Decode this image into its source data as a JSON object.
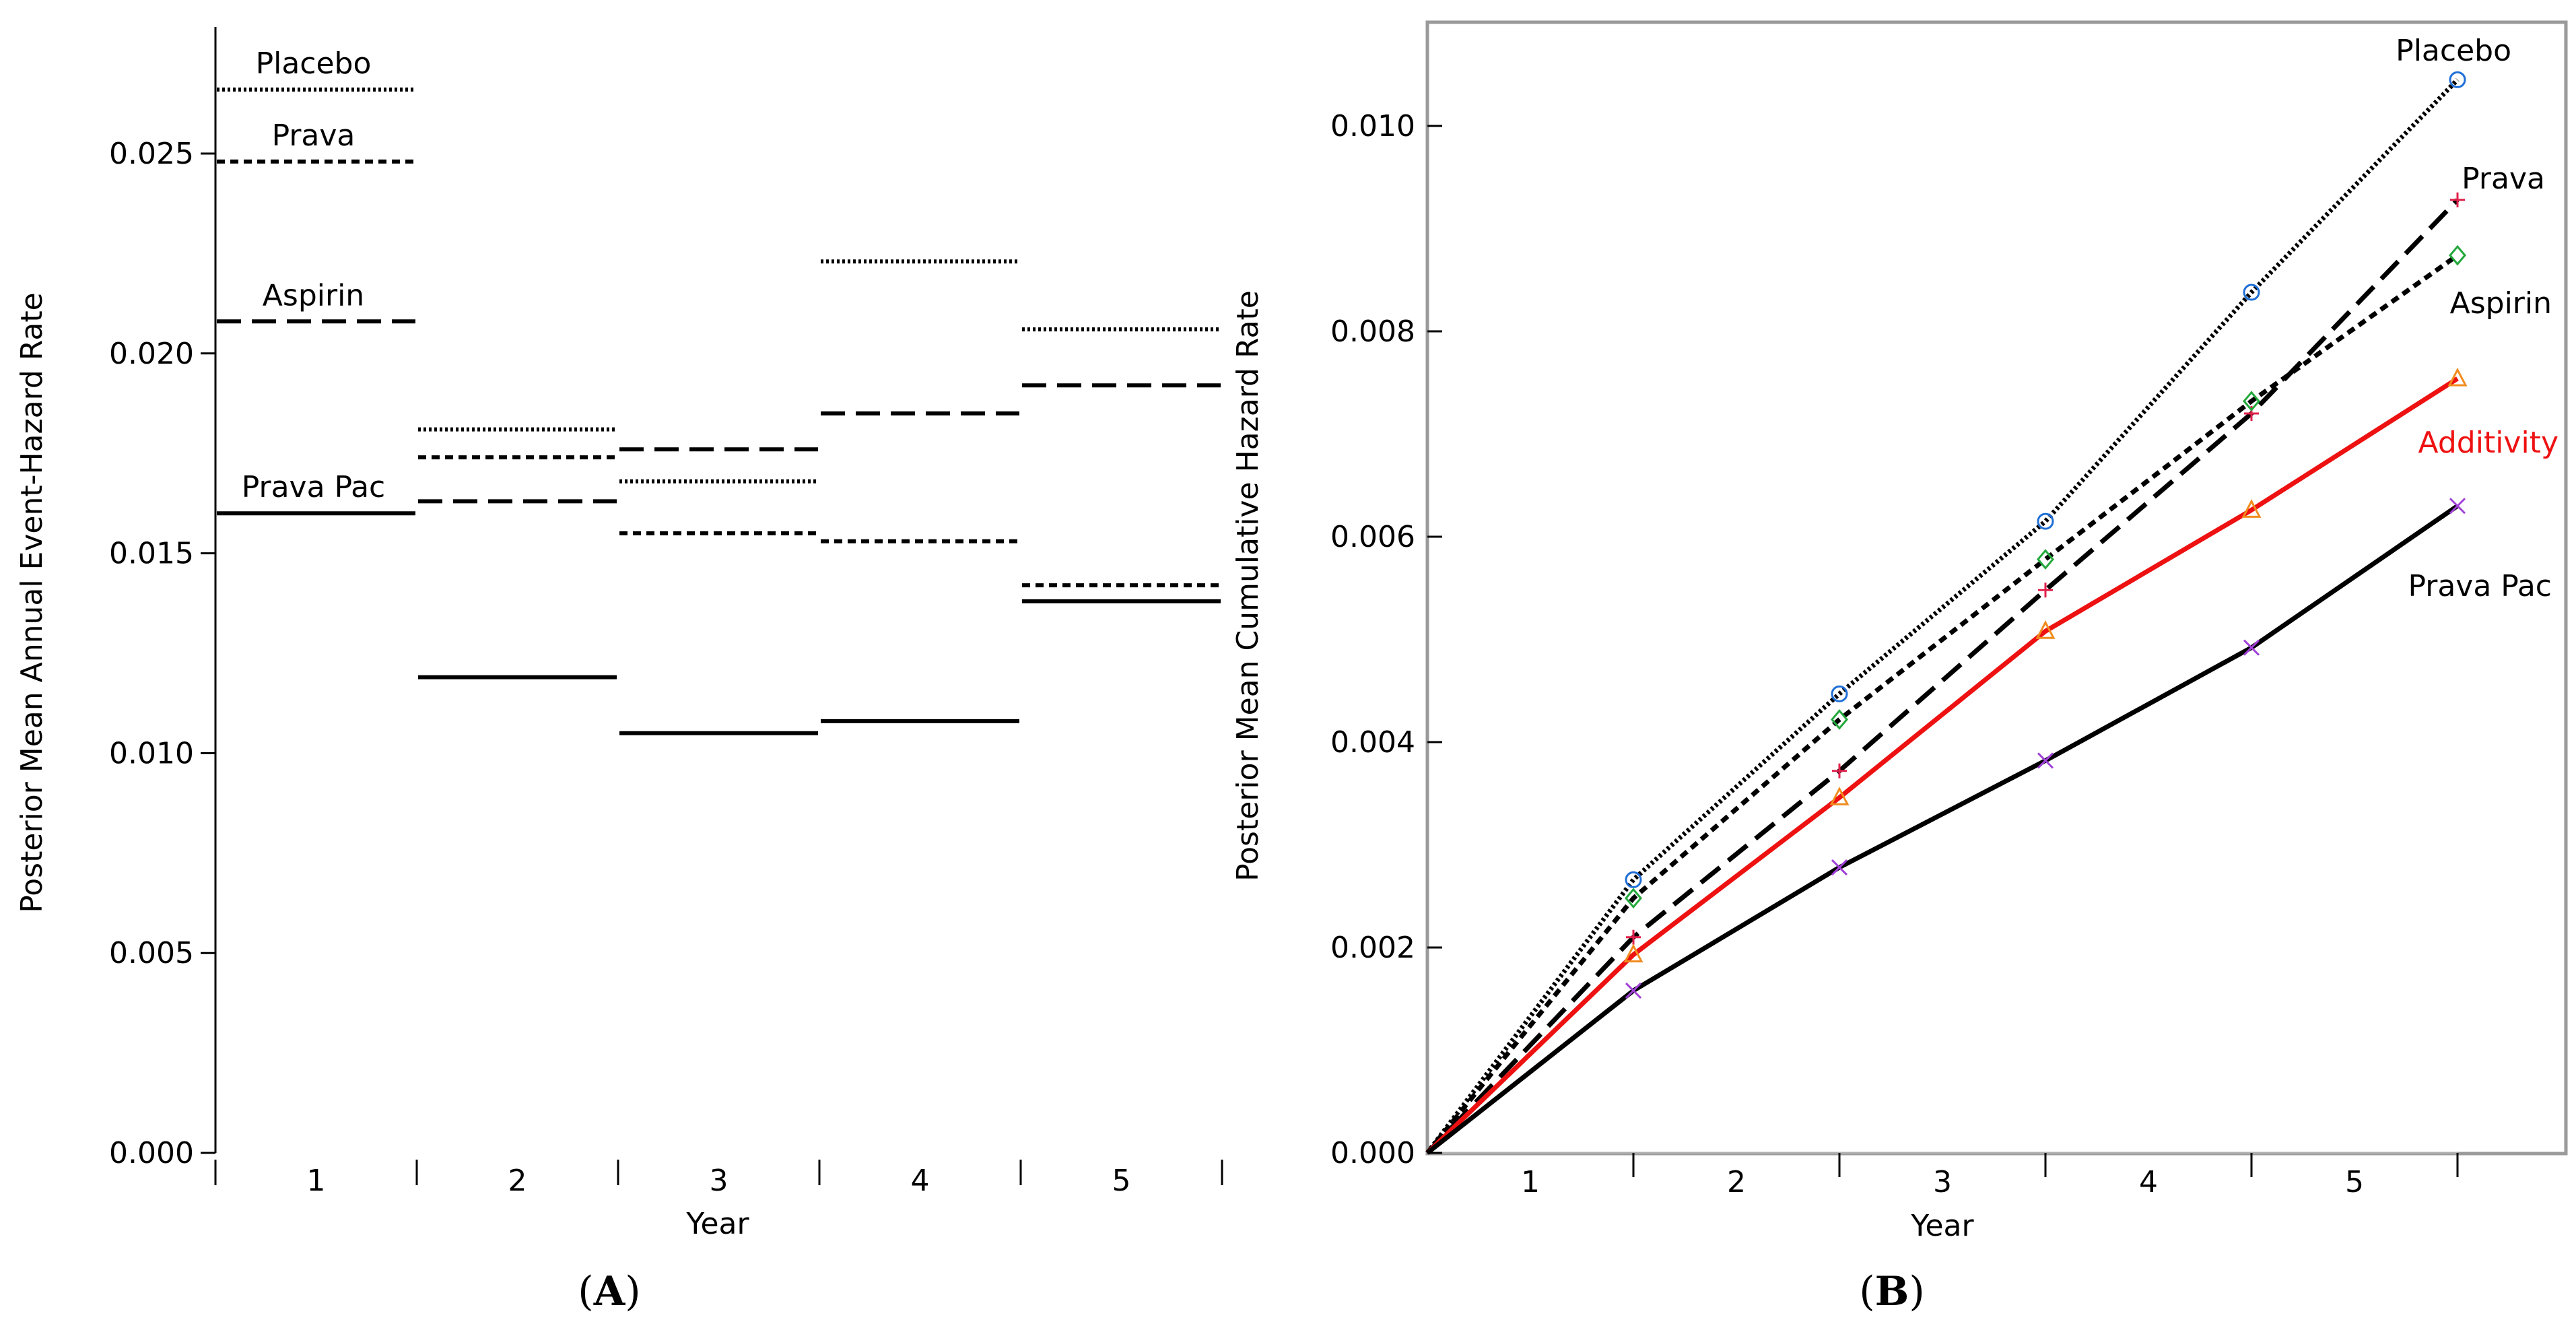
{
  "chart_data": [
    {
      "type": "step",
      "panel": "A",
      "panel_label": "A",
      "xlabel": "Year",
      "ylabel": "Posterior Mean Annual Event-Hazard Rate",
      "categories": [
        "1",
        "2",
        "3",
        "4",
        "5"
      ],
      "ylim": [
        0,
        0.0285
      ],
      "yticks": [
        "0.000",
        "0.005",
        "0.010",
        "0.015",
        "0.020",
        "0.025"
      ],
      "ytick_values": [
        0,
        0.005,
        0.01,
        0.015,
        0.02,
        0.025
      ],
      "series": [
        {
          "name": "Placebo",
          "style": "dotted",
          "values": [
            0.0266,
            0.0181,
            0.0168,
            0.0223,
            0.0206
          ]
        },
        {
          "name": "Prava",
          "style": "short-dashed",
          "values": [
            0.0248,
            0.0174,
            0.0155,
            0.0153,
            0.0142
          ]
        },
        {
          "name": "Aspirin",
          "style": "long-dashed",
          "values": [
            0.0208,
            0.0163,
            0.0176,
            0.0185,
            0.0192
          ]
        },
        {
          "name": "Prava Pac",
          "style": "solid",
          "values": [
            0.016,
            0.0119,
            0.0105,
            0.0108,
            0.0138
          ]
        }
      ]
    },
    {
      "type": "line",
      "panel": "B",
      "panel_label": "B",
      "xlabel": "Year",
      "ylabel": "Posterior Mean Cumulative Hazard Rate",
      "categories": [
        "1",
        "2",
        "3",
        "4",
        "5"
      ],
      "x": [
        0,
        1,
        2,
        3,
        4,
        5
      ],
      "ylim": [
        0,
        0.011
      ],
      "yticks": [
        "0.000",
        "0.002",
        "0.004",
        "0.006",
        "0.008",
        "0.010"
      ],
      "ytick_values": [
        0,
        0.002,
        0.004,
        0.006,
        0.008,
        0.01
      ],
      "series": [
        {
          "name": "Placebo",
          "style": "dotted",
          "color": "#000000",
          "marker": "circle",
          "marker_color": "#1f6fd6",
          "values": [
            0,
            0.00266,
            0.00447,
            0.00615,
            0.00838,
            0.01045
          ]
        },
        {
          "name": "Prava",
          "style": "long-dashed",
          "color": "#000000",
          "marker": "plus",
          "marker_color": "#e0204a",
          "values": [
            0,
            0.0021,
            0.00372,
            0.00548,
            0.0072,
            0.00928
          ]
        },
        {
          "name": "Aspirin",
          "style": "short-dashed",
          "color": "#000000",
          "marker": "diamond",
          "marker_color": "#22a83a",
          "values": [
            0,
            0.00248,
            0.00422,
            0.00578,
            0.00732,
            0.00874
          ]
        },
        {
          "name": "Additivity",
          "style": "solid",
          "color": "#ee1111",
          "label_color": "#ee1111",
          "marker": "triangle",
          "marker_color": "#f08c1e",
          "values": [
            0,
            0.00193,
            0.00346,
            0.00508,
            0.00626,
            0.00754
          ]
        },
        {
          "name": "Prava Pac",
          "style": "solid",
          "color": "#000000",
          "marker": "x",
          "marker_color": "#a040d8",
          "values": [
            0,
            0.00158,
            0.00278,
            0.00382,
            0.00492,
            0.0063
          ]
        }
      ]
    }
  ]
}
